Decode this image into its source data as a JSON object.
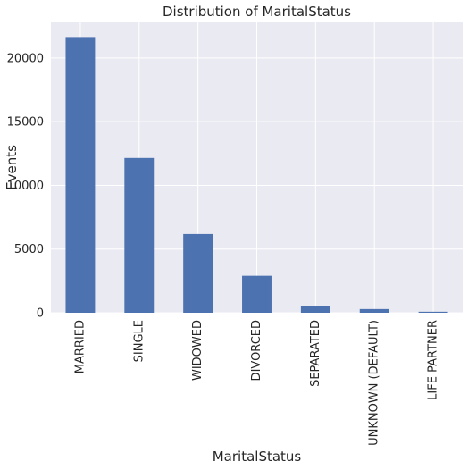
{
  "chart_data": {
    "type": "bar",
    "title": "Distribution of MaritalStatus",
    "xlabel": "MaritalStatus",
    "ylabel": "Events",
    "categories": [
      "MARRIED",
      "SINGLE",
      "WIDOWED",
      "DIVORCED",
      "SEPARATED",
      "UNKNOWN (DEFAULT)",
      "LIFE PARTNER"
    ],
    "values": [
      21650,
      12150,
      6180,
      2900,
      540,
      290,
      80
    ],
    "ylim": [
      0,
      22800
    ],
    "yticks": [
      0,
      5000,
      10000,
      15000,
      20000
    ],
    "ytick_labels": [
      "0",
      "5000",
      "10000",
      "15000",
      "20000"
    ],
    "grid": true,
    "legend": "none",
    "colors": {
      "bar": "#4c72b0",
      "plot_bg": "#eaeaf2",
      "grid": "#ffffff",
      "text": "#262626"
    }
  }
}
